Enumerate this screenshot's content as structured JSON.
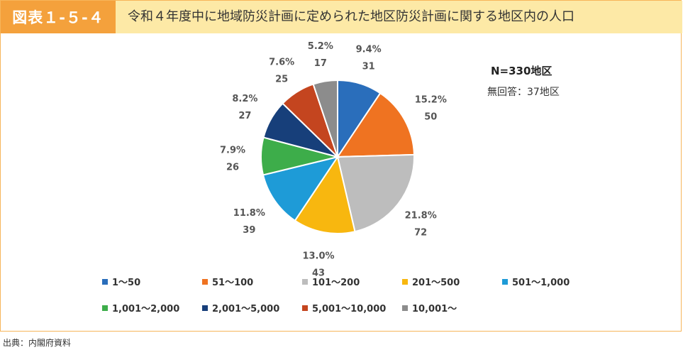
{
  "header": {
    "figure_label": "図表１-５-４",
    "title": "令和４年度中に地域防災計画に定められた地区防災計画に関する地区内の人口"
  },
  "annotations": {
    "n": "N=330地区",
    "no_answer": "無回答：37地区"
  },
  "source": "出典：内閣府資料",
  "chart_data": {
    "type": "pie",
    "title": "",
    "categories": [
      "1〜50",
      "51〜100",
      "101〜200",
      "201〜500",
      "501〜1,000",
      "1,001〜2,000",
      "2,001〜5,000",
      "5,001〜10,000",
      "10,001〜"
    ],
    "values": [
      31,
      50,
      72,
      43,
      39,
      26,
      27,
      25,
      17
    ],
    "percent_labels": [
      "9.4%",
      "15.2%",
      "21.8%",
      "13.0%",
      "11.8%",
      "7.9%",
      "8.2%",
      "7.6%",
      "5.2%"
    ],
    "count_labels": [
      "31",
      "50",
      "72",
      "43",
      "39",
      "26",
      "27",
      "25",
      "17"
    ],
    "colors": [
      "#2a6ebb",
      "#ef7321",
      "#bdbdbd",
      "#f8b70f",
      "#1e9bd7",
      "#3dad4a",
      "#173f7a",
      "#c4451f",
      "#8c8c8c"
    ],
    "legend_position": "bottom"
  }
}
